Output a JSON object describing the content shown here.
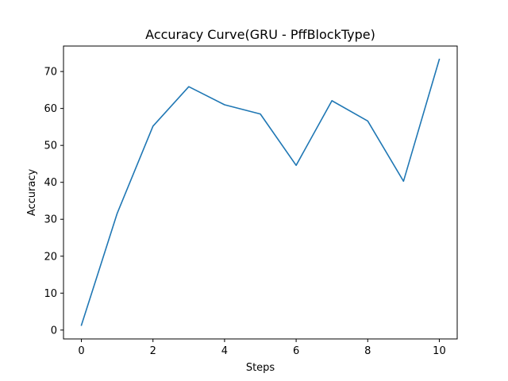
{
  "chart_data": {
    "type": "line",
    "title": "Accuracy Curve(GRU - PffBlockType)",
    "xlabel": "Steps",
    "ylabel": "Accuracy",
    "xlim": [
      -0.5,
      10.5
    ],
    "ylim": [
      -2.4,
      76.9
    ],
    "xticks": [
      0,
      2,
      4,
      6,
      8,
      10
    ],
    "yticks": [
      0,
      10,
      20,
      30,
      40,
      50,
      60,
      70
    ],
    "grid": false,
    "legend": "none",
    "series": [
      {
        "color": "#1f77b4",
        "x": [
          0,
          1,
          2,
          3,
          4,
          5,
          6,
          7,
          8,
          9,
          10
        ],
        "y": [
          1.3,
          31.6,
          55.2,
          65.9,
          61.0,
          58.5,
          44.6,
          62.1,
          56.6,
          40.3,
          73.3
        ]
      }
    ]
  }
}
